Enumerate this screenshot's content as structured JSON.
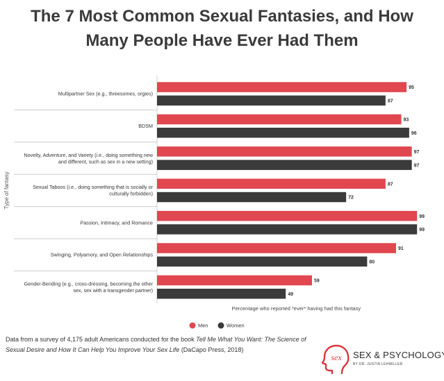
{
  "chart_data": {
    "type": "bar",
    "orientation": "horizontal",
    "title_lines": [
      "The 7 Most Common Sexual Fantasies, and How",
      "Many People Have Ever Had Them"
    ],
    "ylabel": "Type of fantasy",
    "xlabel": "Percentage who reported *ever* having had this fantasy",
    "xlim": [
      0,
      100
    ],
    "categories": [
      [
        "Multipartner Sex (e.g., threesomes, orgies)"
      ],
      [
        "BDSM"
      ],
      [
        "Novelty, Adventure, and Variety (i.e., doing something new",
        "and different, such as sex in a new setting)"
      ],
      [
        "Sexual Taboos (i.e., doing something that is socially or",
        "culturally forbidden)"
      ],
      [
        "Passion, Intimacy, and Romance"
      ],
      [
        "Swinging, Polyamory, and Open Relationships"
      ],
      [
        "Gender-Bending (e.g., cross-dressing, becoming the other",
        "sex, sex with a transgender partner)"
      ]
    ],
    "series": [
      {
        "name": "Men",
        "color": "#e0474f",
        "values": [
          95,
          93,
          97,
          87,
          99,
          91,
          59
        ]
      },
      {
        "name": "Women",
        "color": "#3b3b3b",
        "values": [
          87,
          96,
          97,
          72,
          99,
          80,
          49
        ]
      }
    ],
    "legend_position": "bottom"
  },
  "footnote": {
    "prefix": "Data from a survey of 4,175 adult Americans conducted for the book ",
    "book_title": "Tell Me What You Want: The Science of Sexual Desire and How It Can Help You Improve Your Sex Life",
    "suffix": " (DaCapo Press, 2018)"
  },
  "logo": {
    "mark": "sex",
    "name": "SEX & PSYCHOLOGY",
    "byline": "BY DR. JUSTIN LEHMILLER",
    "color": "#d9383f"
  }
}
